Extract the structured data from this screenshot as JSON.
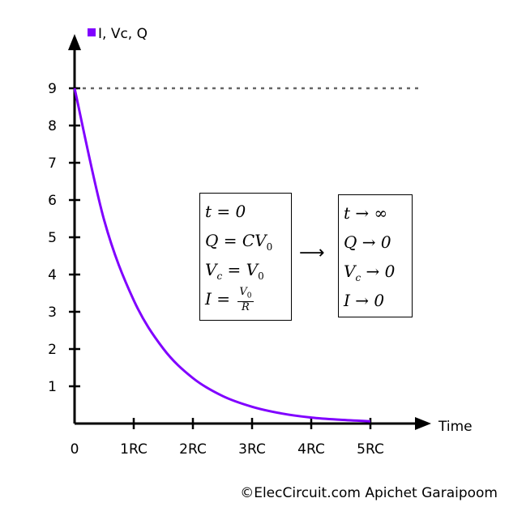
{
  "chart_data": {
    "type": "line",
    "title": "",
    "legend": {
      "label": "I, Vc, Q",
      "placement": "top-left",
      "color": "#8000ff"
    },
    "xlabel": "Time",
    "ylabel": "",
    "x_tick_labels": [
      "0",
      "1RC",
      "2RC",
      "3RC",
      "4RC",
      "5RC"
    ],
    "x_ticks": [
      0,
      1,
      2,
      3,
      4,
      5
    ],
    "y_ticks": [
      1,
      2,
      3,
      4,
      5,
      6,
      7,
      8,
      9
    ],
    "y_tick_labels": [
      "1",
      "2",
      "3",
      "4",
      "5",
      "6",
      "7",
      "8",
      "9"
    ],
    "xlim": [
      0,
      5.8
    ],
    "ylim": [
      0,
      9.8
    ],
    "series": [
      {
        "name": "I, Vc, Q",
        "color": "#8000ff",
        "x": [
          0,
          0.5,
          1,
          1.5,
          2,
          2.5,
          3,
          3.5,
          4,
          4.5,
          5
        ],
        "y": [
          9,
          5.46,
          3.31,
          2.01,
          1.22,
          0.74,
          0.45,
          0.27,
          0.16,
          0.1,
          0.06
        ]
      }
    ],
    "reference_line": {
      "y": 9,
      "style": "dashed",
      "color": "#666666"
    },
    "grid": false
  },
  "annotations": {
    "initial_box": [
      "t = 0",
      "Q = CV",
      "V",
      "I = "
    ],
    "initial_sub": [
      "",
      "0",
      "c",
      ""
    ],
    "initial_rhs": [
      "",
      "",
      " = V",
      ""
    ],
    "initial_rhs_sub": [
      "",
      "",
      "0",
      ""
    ],
    "fraction": {
      "num": "V",
      "num_sub": "0",
      "den": "R"
    },
    "arrow": "⟶",
    "final_box": [
      "t → ∞",
      "Q → 0",
      "V",
      "I → 0"
    ],
    "final_sub": [
      "",
      "",
      "c",
      ""
    ],
    "final_rhs": [
      "",
      "",
      " → 0",
      ""
    ]
  },
  "credit": "©ElecCircuit.com Apichet Garaipoom"
}
